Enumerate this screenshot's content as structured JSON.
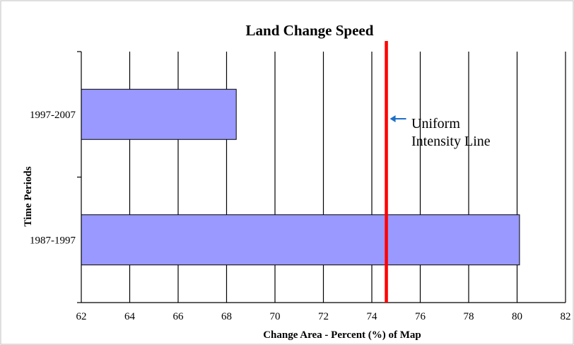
{
  "chart_data": {
    "type": "bar",
    "orientation": "horizontal",
    "title": "Land Change Speed",
    "xlabel": "Change Area - Percent (%) of Map",
    "ylabel": "Time Periods",
    "categories": [
      "1997-2007",
      "1987-1997"
    ],
    "values": [
      68.4,
      80.1
    ],
    "xlim": [
      62,
      82
    ],
    "xticks": [
      62,
      64,
      66,
      68,
      70,
      72,
      74,
      76,
      78,
      80,
      82
    ],
    "grid": "vertical",
    "bar_color": "#9999ff",
    "bar_edge_color": "#000000",
    "reference_line": {
      "value": 74.6,
      "color": "#ff0000",
      "label_line1": "Uniform",
      "label_line2": "Intensity Line",
      "arrow_color": "#1f6fc9"
    }
  }
}
